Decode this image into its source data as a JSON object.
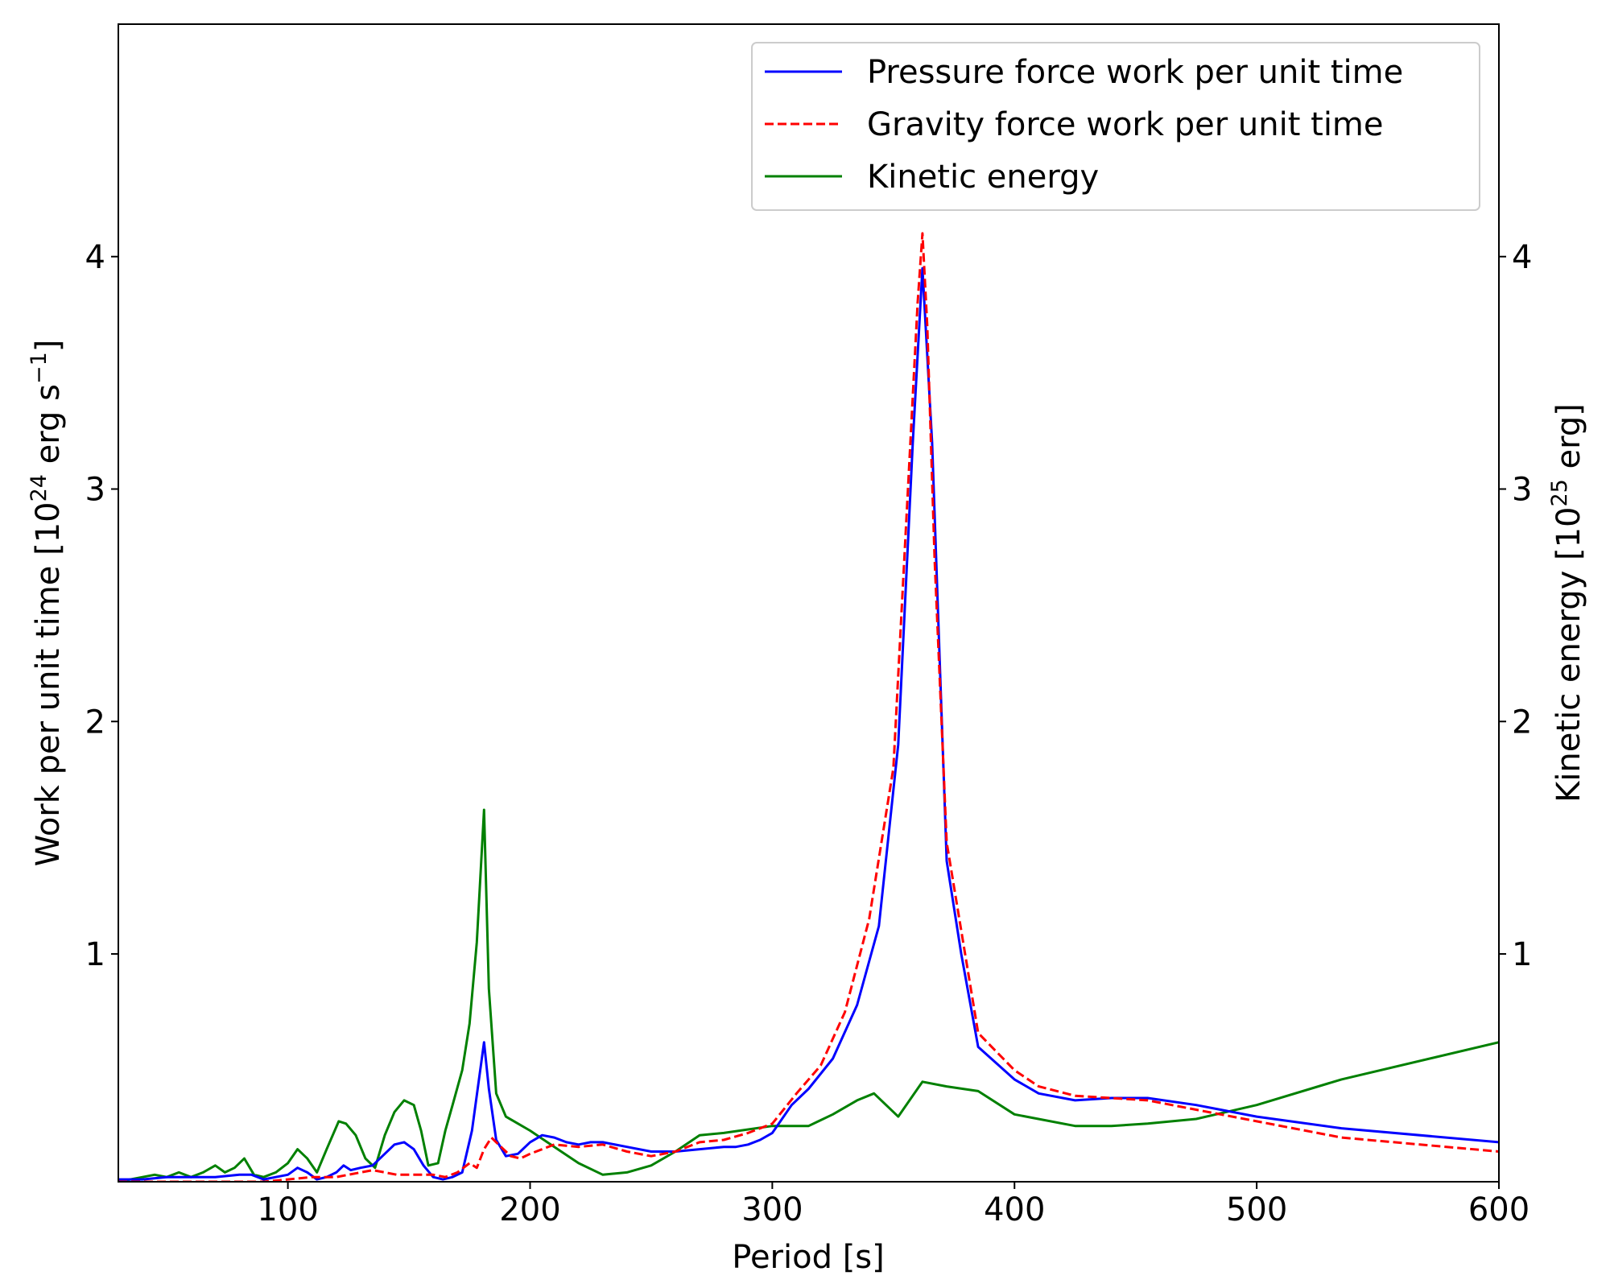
{
  "chart_data": {
    "type": "line",
    "xlabel": "Period [s]",
    "ylabel_left": {
      "text": "Work per unit time [10",
      "sup": "24",
      "text2": " erg s",
      "sup2": "−1",
      "text3": "]"
    },
    "ylabel_right": {
      "text": "Kinetic energy [10",
      "sup": "25",
      "text2": " erg]"
    },
    "xlim": [
      30,
      600
    ],
    "ylim_left": [
      0.02,
      5.0
    ],
    "ylim_right": [
      0.02,
      5.0
    ],
    "x_ticks": [
      100,
      200,
      300,
      400,
      500,
      600
    ],
    "y_ticks_left": [
      1,
      2,
      3,
      4
    ],
    "y_ticks_right": [
      1,
      2,
      3,
      4
    ],
    "grid": false,
    "legend_position": "upper-right",
    "series": [
      {
        "name": "Pressure force work per unit time",
        "axis": "left",
        "color": "#0000ff",
        "dash": "solid",
        "x": [
          30,
          40,
          50,
          60,
          70,
          80,
          85,
          90,
          95,
          100,
          104,
          108,
          112,
          116,
          120,
          123,
          126,
          130,
          135,
          140,
          144,
          148,
          152,
          156,
          160,
          164,
          168,
          172,
          176,
          181,
          183,
          186,
          190,
          195,
          200,
          205,
          210,
          215,
          220,
          225,
          230,
          240,
          250,
          260,
          270,
          280,
          285,
          290,
          295,
          300,
          308,
          315,
          325,
          335,
          344,
          352,
          358,
          362,
          366,
          372,
          378,
          385,
          400,
          410,
          425,
          440,
          455,
          475,
          500,
          535,
          600
        ],
        "y": [
          0.03,
          0.03,
          0.04,
          0.04,
          0.04,
          0.05,
          0.05,
          0.03,
          0.04,
          0.05,
          0.08,
          0.06,
          0.03,
          0.04,
          0.06,
          0.09,
          0.07,
          0.08,
          0.09,
          0.14,
          0.18,
          0.19,
          0.16,
          0.09,
          0.04,
          0.03,
          0.04,
          0.06,
          0.24,
          0.62,
          0.42,
          0.2,
          0.13,
          0.14,
          0.19,
          0.22,
          0.21,
          0.19,
          0.18,
          0.19,
          0.19,
          0.17,
          0.15,
          0.15,
          0.16,
          0.17,
          0.17,
          0.18,
          0.2,
          0.23,
          0.35,
          0.42,
          0.55,
          0.78,
          1.12,
          1.9,
          3.2,
          3.95,
          3.2,
          1.4,
          1.0,
          0.6,
          0.46,
          0.4,
          0.37,
          0.38,
          0.38,
          0.35,
          0.3,
          0.25,
          0.19
        ]
      },
      {
        "name": "Gravity force work per unit time",
        "axis": "left",
        "color": "#ff0000",
        "dash": "dashed",
        "x": [
          30,
          60,
          90,
          100,
          110,
          120,
          125,
          130,
          135,
          140,
          145,
          150,
          160,
          165,
          170,
          175,
          178,
          181,
          184,
          188,
          192,
          196,
          200,
          210,
          220,
          230,
          240,
          250,
          260,
          270,
          280,
          290,
          300,
          310,
          320,
          330,
          340,
          350,
          356,
          360,
          362,
          364,
          367,
          372,
          378,
          385,
          400,
          410,
          425,
          455,
          475,
          500,
          535,
          600
        ],
        "y": [
          0.02,
          0.02,
          0.02,
          0.03,
          0.04,
          0.04,
          0.05,
          0.06,
          0.07,
          0.06,
          0.05,
          0.05,
          0.05,
          0.04,
          0.06,
          0.1,
          0.08,
          0.16,
          0.21,
          0.17,
          0.13,
          0.12,
          0.14,
          0.18,
          0.17,
          0.18,
          0.15,
          0.13,
          0.15,
          0.19,
          0.2,
          0.23,
          0.27,
          0.4,
          0.52,
          0.75,
          1.15,
          1.8,
          3.0,
          3.8,
          4.1,
          3.7,
          2.7,
          1.48,
          1.1,
          0.66,
          0.5,
          0.43,
          0.39,
          0.37,
          0.33,
          0.28,
          0.21,
          0.15
        ]
      },
      {
        "name": "Kinetic energy",
        "axis": "right",
        "color": "#008000",
        "dash": "solid",
        "x": [
          30,
          35,
          40,
          45,
          50,
          55,
          60,
          65,
          70,
          74,
          78,
          82,
          86,
          90,
          95,
          100,
          104,
          108,
          112,
          116,
          121,
          124,
          128,
          132,
          136,
          140,
          144,
          148,
          152,
          155,
          158,
          162,
          165,
          168,
          172,
          175,
          178,
          181,
          183,
          186,
          190,
          200,
          210,
          220,
          230,
          240,
          250,
          260,
          270,
          280,
          300,
          315,
          325,
          335,
          342,
          352,
          362,
          372,
          385,
          400,
          425,
          440,
          455,
          475,
          500,
          535,
          600
        ],
        "y": [
          0.02,
          0.03,
          0.04,
          0.05,
          0.04,
          0.06,
          0.04,
          0.06,
          0.09,
          0.06,
          0.08,
          0.12,
          0.05,
          0.04,
          0.06,
          0.1,
          0.16,
          0.12,
          0.06,
          0.16,
          0.28,
          0.27,
          0.22,
          0.12,
          0.08,
          0.22,
          0.32,
          0.37,
          0.35,
          0.24,
          0.09,
          0.1,
          0.24,
          0.35,
          0.5,
          0.7,
          1.05,
          1.62,
          0.85,
          0.4,
          0.3,
          0.24,
          0.17,
          0.1,
          0.05,
          0.06,
          0.09,
          0.15,
          0.22,
          0.23,
          0.26,
          0.26,
          0.31,
          0.37,
          0.4,
          0.3,
          0.45,
          0.43,
          0.41,
          0.31,
          0.26,
          0.26,
          0.27,
          0.29,
          0.35,
          0.46,
          0.62
        ]
      }
    ]
  }
}
